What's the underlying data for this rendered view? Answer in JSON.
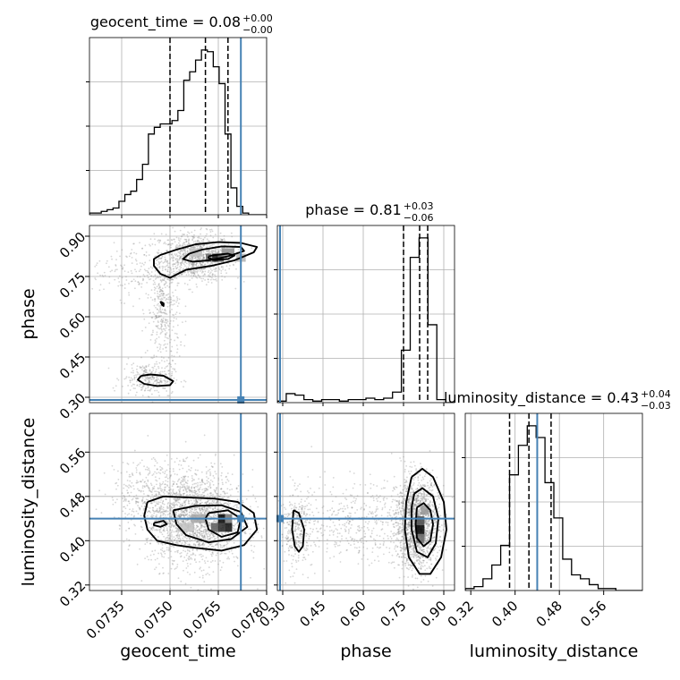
{
  "figure": {
    "colors": {
      "truth": "#4682b4",
      "contour": "#000000",
      "scatter": "#8a8a8a",
      "grid": "#b0b0b0",
      "panel_border": "#000000"
    }
  },
  "chart_data": {
    "type": "corner",
    "parameters": [
      {
        "name": "geocent_time",
        "label": "geocent_time",
        "range": [
          0.0725,
          0.078
        ],
        "ticks": [
          "0.0735",
          "0.0750",
          "0.0765",
          "0.0780"
        ],
        "tick_values": [
          0.0735,
          0.075,
          0.0765,
          0.078
        ],
        "truth": 0.0772
      },
      {
        "name": "phase",
        "label": "phase",
        "range": [
          0.28,
          0.94
        ],
        "ticks": [
          "0.30",
          "0.45",
          "0.60",
          "0.75",
          "0.90"
        ],
        "tick_values": [
          0.3,
          0.45,
          0.6,
          0.75,
          0.9
        ],
        "truth": 0.29
      },
      {
        "name": "luminosity_distance",
        "label": "luminosity_distance",
        "range": [
          0.31,
          0.63
        ],
        "ticks": [
          "0.32",
          "0.40",
          "0.48",
          "0.56"
        ],
        "tick_values": [
          0.32,
          0.4,
          0.48,
          0.56
        ],
        "truth": 0.44
      }
    ],
    "marginals": [
      {
        "parameter": "geocent_time",
        "title_main": "geocent_time = 0.08",
        "title_sup": "+0.00",
        "title_sub": "−0.00",
        "quantiles": [
          0.075,
          0.0761,
          0.0768
        ],
        "hist_edges_start": 0.0725,
        "hist_bin_width": 0.000183,
        "hist_counts": [
          1,
          1,
          2,
          3,
          4,
          8,
          12,
          14,
          21,
          30,
          48,
          52,
          54,
          54,
          56,
          62,
          80,
          85,
          92,
          98,
          97,
          88,
          78,
          48,
          16,
          5,
          1,
          0,
          0,
          0
        ]
      },
      {
        "parameter": "phase",
        "title_main": "phase = 0.81",
        "title_sup": "+0.03",
        "title_sub": "−0.06",
        "quantiles": [
          0.75,
          0.81,
          0.84
        ],
        "hist_edges_start": 0.28,
        "hist_bin_width": 0.033,
        "hist_counts": [
          1,
          6,
          5,
          2,
          1,
          2,
          2,
          1,
          2,
          2,
          3,
          2,
          3,
          7,
          35,
          97,
          110,
          52,
          2,
          0
        ]
      },
      {
        "parameter": "luminosity_distance",
        "title_main": "luminosity_distance = 0.43",
        "title_sup": "+0.04",
        "title_sub": "−0.03",
        "quantiles": [
          0.39,
          0.425,
          0.465
        ],
        "hist_edges_start": 0.31,
        "hist_bin_width": 0.016,
        "hist_counts": [
          1,
          2,
          6,
          13,
          23,
          59,
          74,
          84,
          78,
          55,
          37,
          16,
          8,
          6,
          3,
          1,
          1,
          0,
          0,
          0
        ]
      }
    ],
    "joint": [
      {
        "x": "geocent_time",
        "y": "phase",
        "scatter_blobs": [
          {
            "cx": 0.0758,
            "cy": 0.82,
            "sx": 0.00055,
            "sy": 0.045,
            "n": 900
          },
          {
            "cx": 0.0748,
            "cy": 0.62,
            "sx": 0.00025,
            "sy": 0.12,
            "n": 400
          },
          {
            "cx": 0.0743,
            "cy": 0.37,
            "sx": 0.0004,
            "sy": 0.03,
            "n": 250
          },
          {
            "cx": 0.0738,
            "cy": 0.77,
            "sx": 0.0006,
            "sy": 0.05,
            "n": 150
          }
        ],
        "contours": [
          [
            [
              0.0747,
              0.83
            ],
            [
              0.0752,
              0.85
            ],
            [
              0.0758,
              0.87
            ],
            [
              0.0765,
              0.878
            ],
            [
              0.0772,
              0.875
            ],
            [
              0.0777,
              0.86
            ],
            [
              0.0776,
              0.84
            ],
            [
              0.077,
              0.81
            ],
            [
              0.0763,
              0.79
            ],
            [
              0.0755,
              0.775
            ],
            [
              0.075,
              0.745
            ],
            [
              0.0747,
              0.76
            ],
            [
              0.0745,
              0.79
            ],
            [
              0.0745,
              0.815
            ],
            [
              0.0747,
              0.83
            ]
          ],
          [
            [
              0.0756,
              0.835
            ],
            [
              0.076,
              0.85
            ],
            [
              0.0766,
              0.862
            ],
            [
              0.0772,
              0.86
            ],
            [
              0.0773,
              0.845
            ],
            [
              0.0768,
              0.825
            ],
            [
              0.0762,
              0.81
            ],
            [
              0.0757,
              0.805
            ],
            [
              0.0754,
              0.815
            ],
            [
              0.0756,
              0.835
            ]
          ],
          [
            [
              0.0762,
              0.825
            ],
            [
              0.0764,
              0.83
            ],
            [
              0.0768,
              0.835
            ],
            [
              0.077,
              0.828
            ],
            [
              0.0768,
              0.815
            ],
            [
              0.0764,
              0.812
            ],
            [
              0.0762,
              0.818
            ],
            [
              0.0762,
              0.825
            ]
          ],
          [
            [
              0.0747,
              0.657
            ],
            [
              0.0748,
              0.65
            ],
            [
              0.0748,
              0.64
            ],
            [
              0.07475,
              0.645
            ],
            [
              0.0747,
              0.657
            ]
          ],
          [
            [
              0.0741,
              0.38
            ],
            [
              0.0744,
              0.385
            ],
            [
              0.0748,
              0.38
            ],
            [
              0.0751,
              0.36
            ],
            [
              0.075,
              0.345
            ],
            [
              0.0746,
              0.342
            ],
            [
              0.0742,
              0.35
            ],
            [
              0.074,
              0.365
            ],
            [
              0.0741,
              0.38
            ]
          ]
        ],
        "density_cells": [
          {
            "x": 0.0764,
            "y": 0.82,
            "w": 0.00018,
            "h": 0.03,
            "shade": 0.05
          },
          {
            "x": 0.07658,
            "y": 0.82,
            "w": 0.00018,
            "h": 0.03,
            "shade": 0.3
          },
          {
            "x": 0.0762,
            "y": 0.82,
            "w": 0.00018,
            "h": 0.03,
            "shade": 0.4
          },
          {
            "x": 0.0768,
            "y": 0.84,
            "w": 0.0004,
            "h": 0.03,
            "shade": 0.55
          },
          {
            "x": 0.0758,
            "y": 0.84,
            "w": 0.0004,
            "h": 0.03,
            "shade": 0.75
          },
          {
            "x": 0.0772,
            "y": 0.82,
            "w": 0.0003,
            "h": 0.03,
            "shade": 0.7
          }
        ]
      },
      {
        "x": "geocent_time",
        "y": "luminosity_distance",
        "scatter_blobs": [
          {
            "cx": 0.0758,
            "cy": 0.44,
            "sx": 0.00075,
            "sy": 0.042,
            "n": 1900
          },
          {
            "cx": 0.0745,
            "cy": 0.48,
            "sx": 0.0007,
            "sy": 0.035,
            "n": 400
          }
        ],
        "contours": [
          [
            [
              0.0743,
              0.47
            ],
            [
              0.0748,
              0.48
            ],
            [
              0.0756,
              0.478
            ],
            [
              0.0764,
              0.476
            ],
            [
              0.0771,
              0.47
            ],
            [
              0.0776,
              0.45
            ],
            [
              0.0777,
              0.42
            ],
            [
              0.0773,
              0.392
            ],
            [
              0.0766,
              0.382
            ],
            [
              0.0758,
              0.387
            ],
            [
              0.0752,
              0.392
            ],
            [
              0.0746,
              0.4
            ],
            [
              0.0743,
              0.42
            ],
            [
              0.0742,
              0.445
            ],
            [
              0.0743,
              0.47
            ]
          ],
          [
            [
              0.0751,
              0.455
            ],
            [
              0.0758,
              0.463
            ],
            [
              0.0766,
              0.464
            ],
            [
              0.0772,
              0.452
            ],
            [
              0.0774,
              0.425
            ],
            [
              0.0769,
              0.403
            ],
            [
              0.0762,
              0.397
            ],
            [
              0.0755,
              0.41
            ],
            [
              0.0752,
              0.43
            ],
            [
              0.0751,
              0.455
            ]
          ],
          [
            [
              0.0762,
              0.45
            ],
            [
              0.0768,
              0.455
            ],
            [
              0.0772,
              0.44
            ],
            [
              0.0771,
              0.415
            ],
            [
              0.0766,
              0.407
            ],
            [
              0.0762,
              0.42
            ],
            [
              0.0761,
              0.44
            ],
            [
              0.0762,
              0.45
            ]
          ],
          [
            [
              0.0745,
              0.432
            ],
            [
              0.0748,
              0.436
            ],
            [
              0.0749,
              0.43
            ],
            [
              0.0747,
              0.425
            ],
            [
              0.0745,
              0.428
            ],
            [
              0.0745,
              0.432
            ]
          ]
        ],
        "density_cells": [
          {
            "x": 0.0766,
            "y": 0.44,
            "w": 0.00022,
            "h": 0.016,
            "shade": 0.0
          },
          {
            "x": 0.0766,
            "y": 0.424,
            "w": 0.00022,
            "h": 0.016,
            "shade": 0.15
          },
          {
            "x": 0.07682,
            "y": 0.424,
            "w": 0.00022,
            "h": 0.016,
            "shade": 0.05
          },
          {
            "x": 0.07638,
            "y": 0.424,
            "w": 0.00022,
            "h": 0.016,
            "shade": 0.35
          },
          {
            "x": 0.07682,
            "y": 0.44,
            "w": 0.00022,
            "h": 0.016,
            "shade": 0.45
          },
          {
            "x": 0.0759,
            "y": 0.44,
            "w": 0.0005,
            "h": 0.016,
            "shade": 0.65
          },
          {
            "x": 0.0755,
            "y": 0.424,
            "w": 0.0005,
            "h": 0.016,
            "shade": 0.75
          }
        ]
      },
      {
        "x": "phase",
        "y": "luminosity_distance",
        "scatter_blobs": [
          {
            "cx": 0.8,
            "cy": 0.43,
            "sx": 0.04,
            "sy": 0.04,
            "n": 1700
          },
          {
            "cx": 0.35,
            "cy": 0.42,
            "sx": 0.03,
            "sy": 0.035,
            "n": 300
          },
          {
            "cx": 0.58,
            "cy": 0.435,
            "sx": 0.12,
            "sy": 0.035,
            "n": 450
          }
        ],
        "contours": [
          [
            [
              0.78,
              0.515
            ],
            [
              0.82,
              0.53
            ],
            [
              0.86,
              0.515
            ],
            [
              0.9,
              0.47
            ],
            [
              0.91,
              0.42
            ],
            [
              0.89,
              0.37
            ],
            [
              0.85,
              0.34
            ],
            [
              0.81,
              0.34
            ],
            [
              0.77,
              0.37
            ],
            [
              0.755,
              0.42
            ],
            [
              0.76,
              0.47
            ],
            [
              0.78,
              0.515
            ]
          ],
          [
            [
              0.79,
              0.485
            ],
            [
              0.82,
              0.495
            ],
            [
              0.86,
              0.48
            ],
            [
              0.88,
              0.44
            ],
            [
              0.87,
              0.395
            ],
            [
              0.84,
              0.37
            ],
            [
              0.8,
              0.38
            ],
            [
              0.78,
              0.42
            ],
            [
              0.78,
              0.46
            ],
            [
              0.79,
              0.485
            ]
          ],
          [
            [
              0.8,
              0.46
            ],
            [
              0.825,
              0.468
            ],
            [
              0.85,
              0.455
            ],
            [
              0.86,
              0.43
            ],
            [
              0.85,
              0.4
            ],
            [
              0.825,
              0.39
            ],
            [
              0.8,
              0.405
            ],
            [
              0.795,
              0.43
            ],
            [
              0.8,
              0.46
            ]
          ],
          [
            [
              0.34,
              0.455
            ],
            [
              0.36,
              0.45
            ],
            [
              0.38,
              0.42
            ],
            [
              0.375,
              0.39
            ],
            [
              0.36,
              0.38
            ],
            [
              0.345,
              0.39
            ],
            [
              0.335,
              0.42
            ],
            [
              0.34,
              0.455
            ]
          ]
        ],
        "density_cells": [
          {
            "x": 0.813,
            "y": 0.42,
            "w": 0.03,
            "h": 0.016,
            "shade": 0.0
          },
          {
            "x": 0.813,
            "y": 0.436,
            "w": 0.03,
            "h": 0.016,
            "shade": 0.3
          },
          {
            "x": 0.813,
            "y": 0.404,
            "w": 0.03,
            "h": 0.016,
            "shade": 0.4
          },
          {
            "x": 0.83,
            "y": 0.455,
            "w": 0.03,
            "h": 0.016,
            "shade": 0.6
          }
        ]
      }
    ]
  }
}
